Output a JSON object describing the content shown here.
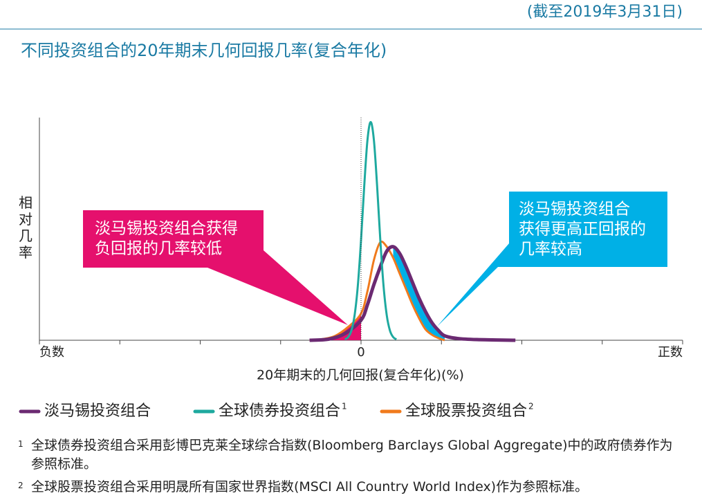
{
  "chart_data": {
    "type": "line",
    "subtitle": "(截至2019年3月31日)",
    "title": "不同投资组合的20年期末几何回报几率(复合年化)",
    "xlabel": "20年期末的几何回报(复合年化)(%)",
    "ylabel": "相对几率",
    "xlim": [
      -10,
      10
    ],
    "ylim": [
      0,
      100
    ],
    "xticks": [
      {
        "value": -10,
        "label": "负数"
      },
      0,
      {
        "value": 10,
        "label": "正数"
      }
    ],
    "xminor_ticks": [
      -7.5,
      -5,
      -2.5,
      2.5,
      5,
      7.5
    ],
    "series": [
      {
        "name": "淡马锡投资组合",
        "color": "#6b2a72",
        "x": [
          -1.6,
          -1.0,
          -0.5,
          0,
          0.2,
          0.4,
          0.6,
          0.8,
          1.0,
          1.2,
          1.4,
          1.6,
          1.8,
          2.0,
          2.2,
          2.4,
          2.6,
          3.0,
          3.6,
          4.8
        ],
        "values": [
          0,
          0.5,
          3,
          9,
          16,
          25,
          33,
          40,
          42,
          39,
          33,
          26,
          19,
          13,
          8,
          4.5,
          2,
          0.8,
          0.3,
          0
        ]
      },
      {
        "name": "全球债券投资组合",
        "note_ref": "1",
        "color": "#1ea99f",
        "x": [
          -0.5,
          -0.4,
          -0.3,
          -0.2,
          -0.1,
          0,
          0.1,
          0.2,
          0.3,
          0.4,
          0.5,
          0.6,
          0.7,
          0.8,
          0.9,
          1.0,
          1.1
        ],
        "values": [
          0.4,
          1.4,
          4.3,
          11.2,
          24.4,
          44.9,
          69.3,
          89.9,
          98,
          89.9,
          69.3,
          44.9,
          24.4,
          11.2,
          4.3,
          1.4,
          0.4
        ]
      },
      {
        "name": "全球股票投资组合",
        "note_ref": "2",
        "color": "#f07a1c",
        "x": [
          -1.6,
          -1.2,
          -0.8,
          -0.4,
          0,
          0.2,
          0.4,
          0.6,
          0.8,
          1.0,
          1.2,
          1.4,
          1.6,
          1.8,
          2.0,
          2.2,
          2.4,
          2.6
        ],
        "values": [
          0,
          0.5,
          2,
          6,
          12,
          22,
          36,
          44,
          42,
          37,
          30,
          23,
          16,
          10,
          5,
          2.5,
          1,
          0
        ]
      }
    ],
    "annotations": [
      {
        "lines": [
          "淡马锡投资组合获得",
          "负回报的几率较低"
        ],
        "color": "#e5106d"
      },
      {
        "lines": [
          "淡马锡投资组合",
          "获得更高正回报的",
          "几率较高"
        ],
        "color": "#00b0e6"
      }
    ],
    "footnotes": [
      {
        "marker": "1",
        "text": "全球债券投资组合采用彭博巴克莱全球综合指数(Bloomberg Barclays Global Aggregate)中的政府债券作为参照标准。"
      },
      {
        "marker": "2",
        "text": "全球股票投资组合采用明晟所有国家世界指数(MSCI All Country World Index)作为参照标准。"
      }
    ]
  }
}
